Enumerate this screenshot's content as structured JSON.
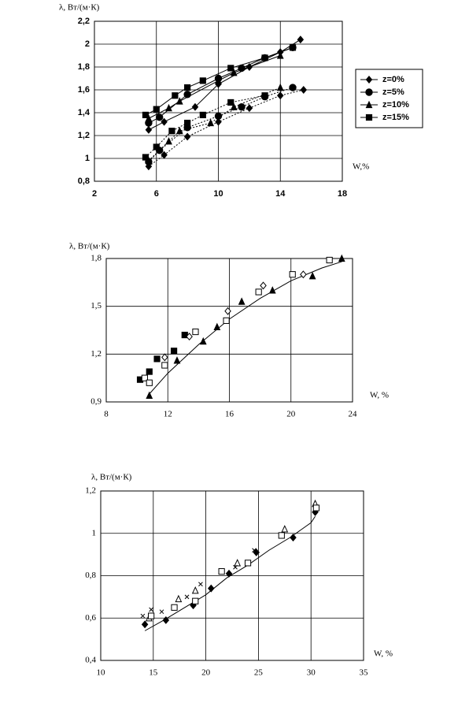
{
  "chart_data": [
    {
      "type": "scatter",
      "color": "#000000",
      "y_label": "λ, Вт/(м·К)",
      "x_label": "W,%",
      "legend": "right",
      "grid": true,
      "xlim": [
        2,
        18
      ],
      "xticks": [
        2,
        6,
        10,
        14,
        18
      ],
      "ylim": [
        0.8,
        2.2
      ],
      "yticks": [
        {
          "value": 0.8,
          "label": "0,8"
        },
        1,
        {
          "value": 1.2,
          "label": "1,2"
        },
        {
          "value": 1.4,
          "label": "1,4"
        },
        {
          "value": 1.6,
          "label": "1,6"
        },
        {
          "value": 1.8,
          "label": "1,8"
        },
        2,
        {
          "value": 2.2,
          "label": "2,2"
        }
      ],
      "series": [
        {
          "name": "z=0%",
          "marker": "diamond",
          "groups": [
            {
              "style": "solid",
              "x": [
                5.5,
                6.5,
                8.5,
                10,
                12,
                14,
                15.3
              ],
              "values": [
                1.25,
                1.32,
                1.45,
                1.65,
                1.8,
                1.93,
                2.04
              ]
            },
            {
              "style": "dotted",
              "x": [
                5.5,
                6.5,
                8,
                10,
                12,
                14,
                15.5
              ],
              "values": [
                0.93,
                1.03,
                1.19,
                1.32,
                1.44,
                1.55,
                1.6
              ]
            }
          ]
        },
        {
          "name": "z=5%",
          "marker": "circle",
          "groups": [
            {
              "style": "solid",
              "x": [
                5.5,
                6.2,
                8,
                10,
                11.5,
                13,
                14.8
              ],
              "values": [
                1.31,
                1.36,
                1.56,
                1.7,
                1.79,
                1.88,
                1.97
              ]
            },
            {
              "style": "dotted",
              "x": [
                5.5,
                6.2,
                8,
                10,
                11.5,
                13,
                14.8
              ],
              "values": [
                0.97,
                1.07,
                1.27,
                1.37,
                1.45,
                1.54,
                1.62
              ]
            }
          ]
        },
        {
          "name": "z=10%",
          "marker": "triangle",
          "groups": [
            {
              "style": "solid",
              "x": [
                5.5,
                6.8,
                7.5,
                10,
                11,
                14
              ],
              "values": [
                1.35,
                1.44,
                1.5,
                1.68,
                1.75,
                1.9
              ]
            },
            {
              "style": "dotted",
              "x": [
                5.5,
                6.8,
                7.5,
                9.5,
                11,
                14
              ],
              "values": [
                0.98,
                1.15,
                1.24,
                1.31,
                1.45,
                1.62
              ]
            }
          ]
        },
        {
          "name": "z=15%",
          "marker": "square",
          "groups": [
            {
              "style": "solid",
              "x": [
                5.3,
                6,
                7.2,
                8,
                9,
                10.8,
                13,
                14.8
              ],
              "values": [
                1.38,
                1.43,
                1.55,
                1.62,
                1.68,
                1.79,
                1.88,
                1.97
              ]
            },
            {
              "style": "dotted",
              "x": [
                5.3,
                6,
                7,
                8,
                9,
                10.8,
                13
              ],
              "values": [
                1.01,
                1.1,
                1.24,
                1.31,
                1.38,
                1.49,
                1.55
              ]
            }
          ]
        }
      ]
    },
    {
      "type": "scatter",
      "color": "#000000",
      "y_label": "λ, Вт/(м·К)",
      "x_label": "W, %",
      "grid": true,
      "xlim": [
        8,
        24
      ],
      "xticks": [
        8,
        12,
        16,
        20,
        24
      ],
      "ylim": [
        0.9,
        1.8
      ],
      "yticks": [
        {
          "value": 0.9,
          "label": "0,9"
        },
        {
          "value": 1.2,
          "label": "1,2"
        },
        {
          "value": 1.5,
          "label": "1,5"
        },
        {
          "value": 1.8,
          "label": "1,8"
        }
      ],
      "series": [
        {
          "marker": "square",
          "x": [
            10.2,
            10.8,
            11.3,
            12.4,
            13.1
          ],
          "values": [
            1.04,
            1.09,
            1.17,
            1.22,
            1.32
          ]
        },
        {
          "marker": "open-square",
          "x": [
            10.5,
            10.8,
            11.8,
            13.8,
            15.8,
            17.9,
            20.1,
            22.5
          ],
          "values": [
            1.05,
            1.02,
            1.13,
            1.34,
            1.41,
            1.59,
            1.7,
            1.79
          ]
        },
        {
          "marker": "open-diamond",
          "x": [
            11.8,
            13.4,
            15.9,
            18.2,
            20.8
          ],
          "values": [
            1.18,
            1.31,
            1.47,
            1.63,
            1.7
          ]
        },
        {
          "marker": "triangle",
          "x": [
            10.8,
            12.6,
            14.3,
            15.2,
            16.8,
            18.8,
            21.4,
            23.3
          ],
          "values": [
            0.94,
            1.16,
            1.28,
            1.37,
            1.53,
            1.6,
            1.69,
            1.8
          ]
        }
      ],
      "fit": {
        "x": [
          10.8,
          12,
          14,
          16,
          18,
          20,
          22,
          23.3
        ],
        "values": [
          0.95,
          1.08,
          1.26,
          1.42,
          1.55,
          1.66,
          1.74,
          1.78
        ]
      }
    },
    {
      "type": "scatter",
      "color": "#000000",
      "y_label": "λ, Вт/(м·К)",
      "x_label": "W, %",
      "grid": true,
      "xlim": [
        10,
        35
      ],
      "xticks": [
        10,
        15,
        20,
        25,
        30,
        35
      ],
      "ylim": [
        0.4,
        1.2
      ],
      "yticks": [
        {
          "value": 0.4,
          "label": "0,4"
        },
        {
          "value": 0.6,
          "label": "0,6"
        },
        {
          "value": 0.8,
          "label": "0,8"
        },
        1,
        {
          "value": 1.2,
          "label": "1,2"
        }
      ],
      "series": [
        {
          "marker": "diamond",
          "x": [
            14.2,
            16.2,
            18.8,
            20.5,
            22.2,
            24.8,
            28.3,
            30.4
          ],
          "values": [
            0.57,
            0.59,
            0.66,
            0.74,
            0.81,
            0.91,
            0.98,
            1.1
          ]
        },
        {
          "marker": "open-triangle",
          "x": [
            14.6,
            17.4,
            19,
            23,
            27.5,
            30.4
          ],
          "values": [
            0.6,
            0.69,
            0.73,
            0.86,
            1.02,
            1.14
          ]
        },
        {
          "marker": "open-square",
          "x": [
            14.8,
            17,
            19,
            21.5,
            24,
            27.2,
            30.5
          ],
          "values": [
            0.61,
            0.65,
            0.68,
            0.82,
            0.86,
            0.99,
            1.12
          ]
        },
        {
          "marker": "cross",
          "x": [
            14,
            14.8,
            15.8,
            18.2,
            19.5,
            22.8,
            24.6
          ],
          "values": [
            0.61,
            0.64,
            0.63,
            0.7,
            0.76,
            0.84,
            0.92
          ]
        }
      ],
      "fit": {
        "x": [
          14.2,
          16,
          18,
          20,
          22,
          24,
          26,
          28,
          30,
          30.4
        ],
        "values": [
          0.54,
          0.59,
          0.65,
          0.71,
          0.79,
          0.85,
          0.92,
          0.98,
          1.05,
          1.08
        ]
      }
    }
  ]
}
